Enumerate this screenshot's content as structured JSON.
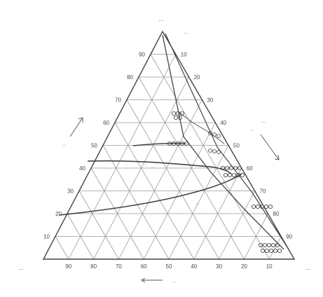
{
  "diagram": {
    "apex_label": "…",
    "apex_sub_label": "…",
    "bottom_left_label": "…",
    "bottom_right_label": "…",
    "bottom_axis_label": "…",
    "left_side_label": "…",
    "right_side_label": "…",
    "right_side_label_2": "…",
    "region_label_1": "…",
    "region_label_2": "…",
    "region_label_3": "…",
    "left_ticks": [
      "90",
      "80",
      "70",
      "60",
      "50",
      "40",
      "30",
      "20",
      "10"
    ],
    "right_ticks": [
      "10",
      "20",
      "30",
      "40",
      "50",
      "60",
      "70",
      "80",
      "90"
    ],
    "bottom_ticks": [
      "90",
      "80",
      "70",
      "60",
      "50",
      "40",
      "30",
      "20",
      "10"
    ],
    "colors": {
      "lines": "#555555",
      "grid": "#9a9a9a",
      "background": "#ffffff"
    }
  }
}
